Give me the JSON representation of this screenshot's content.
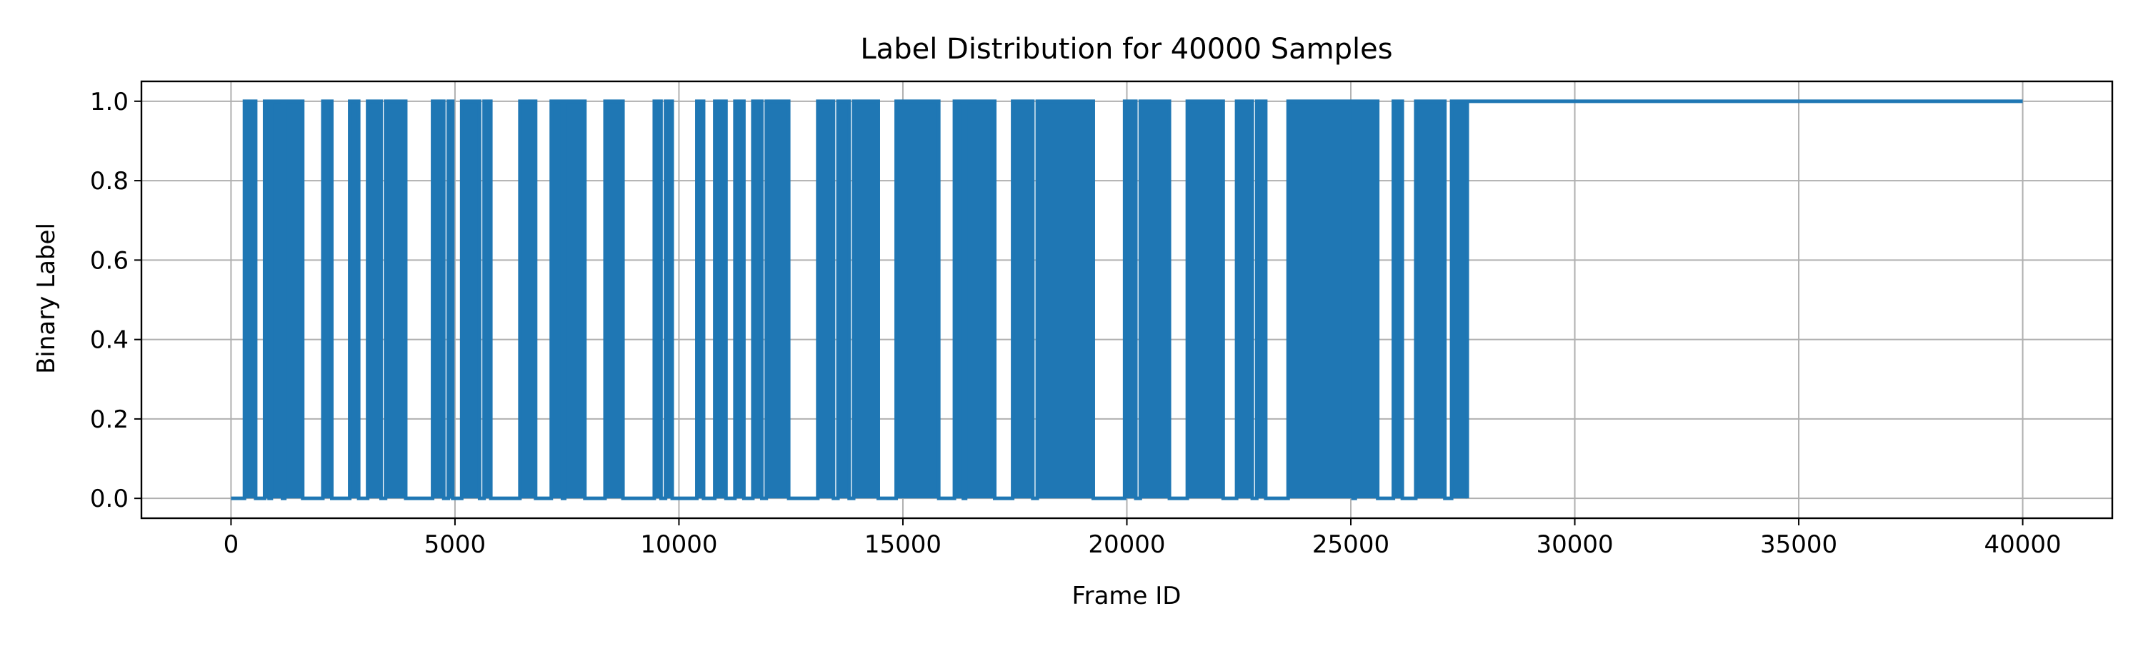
{
  "chart_data": {
    "type": "line",
    "title": "Label Distribution for 40000 Samples",
    "xlabel": "Frame ID",
    "ylabel": "Binary Label",
    "xlim": [
      -2000,
      42000
    ],
    "ylim": [
      -0.05,
      1.05
    ],
    "x_ticks": [
      0,
      5000,
      10000,
      15000,
      20000,
      25000,
      30000,
      35000,
      40000
    ],
    "x_tick_labels": [
      "0",
      "5000",
      "10000",
      "15000",
      "20000",
      "25000",
      "30000",
      "35000",
      "40000"
    ],
    "y_ticks": [
      0.0,
      0.2,
      0.4,
      0.6,
      0.8,
      1.0
    ],
    "y_tick_labels": [
      "0.0",
      "0.2",
      "0.4",
      "0.6",
      "0.8",
      "1.0"
    ],
    "grid": true,
    "series": [
      {
        "color": "#1f77b4",
        "total_frames": 40000,
        "default_label": 0,
        "positive_segments": [
          [
            300,
            550
          ],
          [
            750,
            850
          ],
          [
            900,
            1150
          ],
          [
            1200,
            1600
          ],
          [
            2050,
            2250
          ],
          [
            2650,
            2850
          ],
          [
            3050,
            3350
          ],
          [
            3450,
            3900
          ],
          [
            4500,
            4750
          ],
          [
            4850,
            4950
          ],
          [
            5150,
            5550
          ],
          [
            5650,
            5800
          ],
          [
            6450,
            6800
          ],
          [
            7150,
            7400
          ],
          [
            7450,
            7900
          ],
          [
            8350,
            8750
          ],
          [
            9450,
            9600
          ],
          [
            9700,
            9850
          ],
          [
            10400,
            10550
          ],
          [
            10800,
            11050
          ],
          [
            11250,
            11450
          ],
          [
            11650,
            11850
          ],
          [
            11950,
            12450
          ],
          [
            13100,
            13450
          ],
          [
            13550,
            13800
          ],
          [
            13900,
            14450
          ],
          [
            14850,
            15800
          ],
          [
            16150,
            16350
          ],
          [
            16400,
            17050
          ],
          [
            17450,
            17900
          ],
          [
            18000,
            19250
          ],
          [
            19950,
            20200
          ],
          [
            20300,
            20950
          ],
          [
            21350,
            22150
          ],
          [
            22450,
            22800
          ],
          [
            22900,
            23100
          ],
          [
            23600,
            25050
          ],
          [
            25100,
            25600
          ],
          [
            25950,
            26150
          ],
          [
            26450,
            27100
          ],
          [
            27250,
            27600
          ]
        ],
        "constant_from": 27600,
        "constant_value": 1
      }
    ]
  }
}
